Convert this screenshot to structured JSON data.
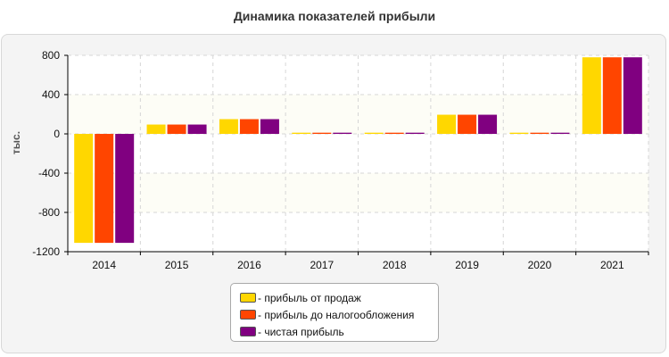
{
  "chart_data": {
    "type": "bar",
    "title": "Динамика показателей прибыли",
    "ylabel": "тыс.",
    "xlabel": "",
    "categories": [
      "2014",
      "2015",
      "2016",
      "2017",
      "2018",
      "2019",
      "2020",
      "2021"
    ],
    "ylim": [
      -1200,
      800
    ],
    "yticks": [
      800,
      400,
      0,
      -400,
      -800,
      -1200
    ],
    "yticks_labels": [
      "800",
      "400",
      "0",
      "-400",
      "-800",
      "-1200"
    ],
    "grid": true,
    "legend_position": "bottom-center",
    "series": [
      {
        "name": "- прибыль от продаж",
        "color": "#ffd700",
        "values": [
          -1110,
          95,
          150,
          12,
          12,
          195,
          12,
          780
        ]
      },
      {
        "name": "- прибыль до налогообложения",
        "color": "#ff4500",
        "values": [
          -1110,
          95,
          150,
          12,
          12,
          195,
          12,
          780
        ]
      },
      {
        "name": "- чистая прибыль",
        "color": "#800080",
        "values": [
          -1110,
          95,
          150,
          12,
          12,
          195,
          12,
          780
        ]
      }
    ]
  }
}
